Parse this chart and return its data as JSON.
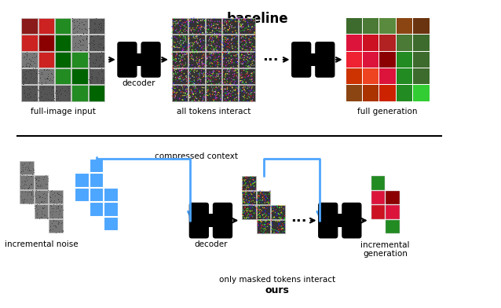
{
  "title_baseline": "baseline",
  "title_ours": "ours",
  "label_full_image": "full-image input",
  "label_all_tokens": "all tokens interact",
  "label_full_gen": "full generation",
  "label_inc_noise": "incremental noise",
  "label_only_masked": "only masked tokens interact",
  "label_inc_gen": "incremental\ngeneration",
  "label_decoder": "decoder",
  "label_compressed": "compressed context",
  "bg_color": "#ffffff",
  "black": "#000000",
  "blue": "#4da6ff",
  "gray_tile": "#888888"
}
